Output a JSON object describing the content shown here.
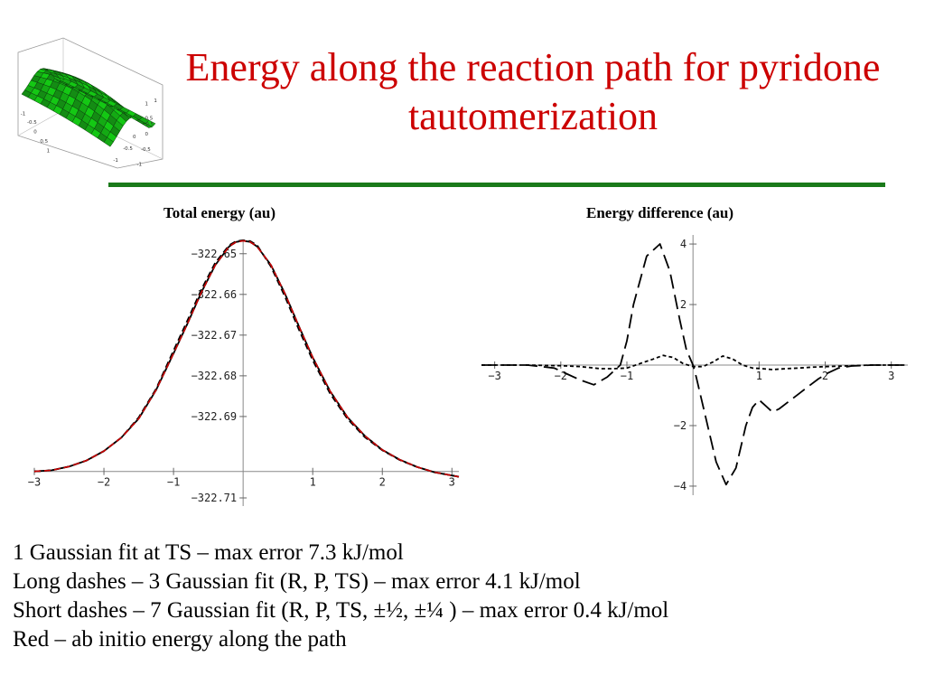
{
  "slide": {
    "title": "Energy along the reaction path for pyridone tautomerization",
    "accent_colors": {
      "title": "#cc0000",
      "rule": "#1a7a1a",
      "surface": "#22aa22"
    },
    "thumbnail": {
      "icon": "3d-surface-plot-icon",
      "tick_labels": [
        "1",
        "0.5",
        "0",
        "-0.5",
        "-1",
        "-1",
        "-0.5",
        "0",
        "0.5",
        "1",
        "1",
        "0.5",
        "0",
        "-0.5",
        "-1"
      ]
    },
    "notes": [
      "1 Gaussian fit at TS – max error 7.3 kJ/mol",
      "Long dashes – 3 Gaussian fit (R, P, TS) – max error 4.1 kJ/mol",
      "Short dashes – 7 Gaussian fit (R, P, TS, ±½, ±¼ ) – max error 0.4 kJ/mol",
      "Red – ab initio energy along the path"
    ]
  },
  "chart_data": [
    {
      "type": "line",
      "title": "Total energy (au)",
      "xlim": [
        -3.0,
        3.1
      ],
      "ylim": [
        -322.712,
        -322.6465
      ],
      "x_ticks": [
        -3,
        -2,
        -1,
        1,
        2,
        3
      ],
      "x_tick_labels": [
        "−3",
        "−2",
        "−1",
        "1",
        "2",
        "3"
      ],
      "y_ticks": [
        -322.65,
        -322.66,
        -322.67,
        -322.68,
        -322.69,
        -322.71
      ],
      "y_tick_labels": [
        "−322.65",
        "−322.66",
        "−322.67",
        "−322.68",
        "−322.69",
        "−322.71"
      ],
      "x_axis_at_y": -322.7035,
      "grid": false,
      "series": [
        {
          "style": "solid",
          "color": "#000000",
          "x": [
            -3.0,
            -2.75,
            -2.5,
            -2.25,
            -2.0,
            -1.75,
            -1.5,
            -1.25,
            -1.0,
            -0.8,
            -0.6,
            -0.4,
            -0.2,
            -0.1,
            0.0,
            0.1,
            0.2,
            0.4,
            0.6,
            0.8,
            1.0,
            1.25,
            1.5,
            1.75,
            2.0,
            2.25,
            2.5,
            2.75,
            3.1
          ],
          "y": [
            -322.7035,
            -322.7032,
            -322.7023,
            -322.7008,
            -322.6985,
            -322.6952,
            -322.6905,
            -322.6835,
            -322.6745,
            -322.6672,
            -322.6595,
            -322.6528,
            -322.6482,
            -322.6471,
            -322.6468,
            -322.6471,
            -322.6482,
            -322.6528,
            -322.6598,
            -322.6678,
            -322.6755,
            -322.6838,
            -322.6902,
            -322.6948,
            -322.6982,
            -322.7006,
            -322.7024,
            -322.7037,
            -322.7048
          ]
        },
        {
          "style": "dashed",
          "color": "#000000",
          "x": [
            -3.0,
            -2.75,
            -2.5,
            -2.25,
            -2.0,
            -1.75,
            -1.5,
            -1.25,
            -1.0,
            -0.8,
            -0.6,
            -0.4,
            -0.2,
            -0.1,
            0.0,
            0.1,
            0.2,
            0.4,
            0.6,
            0.8,
            1.0,
            1.25,
            1.5,
            1.75,
            2.0,
            2.25,
            2.5,
            2.75,
            3.1
          ],
          "y": [
            -322.7035,
            -322.7032,
            -322.7023,
            -322.7008,
            -322.6985,
            -322.6952,
            -322.6902,
            -322.6832,
            -322.6738,
            -322.6664,
            -322.6588,
            -322.6522,
            -322.6479,
            -322.6469,
            -322.6467,
            -322.6469,
            -322.6479,
            -322.6532,
            -322.6605,
            -322.6686,
            -322.6762,
            -322.6844,
            -322.6906,
            -322.6951,
            -322.6983,
            -322.7007,
            -322.7024,
            -322.7037,
            -322.7048
          ]
        },
        {
          "style": "dotted",
          "color": "#000000",
          "x": [
            -3.0,
            -2.75,
            -2.5,
            -2.25,
            -2.0,
            -1.75,
            -1.5,
            -1.25,
            -1.0,
            -0.8,
            -0.6,
            -0.4,
            -0.2,
            -0.1,
            0.0,
            0.1,
            0.2,
            0.4,
            0.6,
            0.8,
            1.0,
            1.25,
            1.5,
            1.75,
            2.0,
            2.25,
            2.5,
            2.75,
            3.1
          ],
          "y": [
            -322.7035,
            -322.7032,
            -322.7023,
            -322.7008,
            -322.6985,
            -322.6952,
            -322.6905,
            -322.6835,
            -322.6745,
            -322.6672,
            -322.6595,
            -322.6528,
            -322.6482,
            -322.6471,
            -322.6468,
            -322.6471,
            -322.6482,
            -322.6528,
            -322.6598,
            -322.6678,
            -322.6755,
            -322.6838,
            -322.6902,
            -322.6948,
            -322.6982,
            -322.7006,
            -322.7024,
            -322.7037,
            -322.7048
          ]
        },
        {
          "style": "dashed",
          "color": "#cc0000",
          "x": [
            -3.0,
            -2.75,
            -2.5,
            -2.25,
            -2.0,
            -1.75,
            -1.5,
            -1.25,
            -1.0,
            -0.8,
            -0.6,
            -0.4,
            -0.2,
            -0.1,
            0.0,
            0.1,
            0.2,
            0.4,
            0.6,
            0.8,
            1.0,
            1.25,
            1.5,
            1.75,
            2.0,
            2.25,
            2.5,
            2.75,
            3.1
          ],
          "y": [
            -322.7035,
            -322.7032,
            -322.7023,
            -322.7008,
            -322.6985,
            -322.6952,
            -322.6905,
            -322.6835,
            -322.6745,
            -322.6672,
            -322.6595,
            -322.6528,
            -322.6482,
            -322.6471,
            -322.6468,
            -322.6471,
            -322.6482,
            -322.6528,
            -322.6598,
            -322.6678,
            -322.6755,
            -322.6838,
            -322.6902,
            -322.6948,
            -322.6982,
            -322.7006,
            -322.7024,
            -322.7037,
            -322.7048
          ]
        }
      ]
    },
    {
      "type": "line",
      "title": "Energy difference (au)",
      "xlim": [
        -3.2,
        3.25
      ],
      "ylim": [
        -4.3,
        4.3
      ],
      "x_ticks": [
        -3,
        -2,
        -1,
        1,
        2,
        3
      ],
      "x_tick_labels": [
        "−3",
        "−2",
        "−1",
        "1",
        "2",
        "3"
      ],
      "y_ticks": [
        4,
        2,
        -2,
        -4
      ],
      "y_tick_labels": [
        "4",
        "2",
        "−2",
        "−4"
      ],
      "x_axis_at_y": 0,
      "grid": false,
      "series": [
        {
          "style": "long-dash",
          "color": "#000000",
          "x": [
            -3.2,
            -2.5,
            -2.1,
            -1.9,
            -1.7,
            -1.5,
            -1.3,
            -1.1,
            -1.0,
            -0.9,
            -0.7,
            -0.5,
            -0.35,
            -0.2,
            -0.1,
            0.0,
            0.05,
            0.2,
            0.35,
            0.5,
            0.65,
            0.8,
            0.9,
            1.0,
            1.1,
            1.2,
            1.3,
            1.45,
            1.6,
            1.75,
            1.9,
            2.05,
            2.2,
            2.4,
            2.7,
            3.0,
            3.2
          ],
          "y": [
            0.0,
            0.0,
            -0.1,
            -0.3,
            -0.5,
            -0.65,
            -0.4,
            0.0,
            0.8,
            2.0,
            3.6,
            4.0,
            3.1,
            1.5,
            0.5,
            0.0,
            -0.4,
            -1.8,
            -3.2,
            -3.95,
            -3.4,
            -2.0,
            -1.4,
            -1.15,
            -1.35,
            -1.55,
            -1.45,
            -1.2,
            -0.95,
            -0.7,
            -0.45,
            -0.25,
            -0.1,
            -0.03,
            0.0,
            0.0,
            0.0
          ]
        },
        {
          "style": "short-dash",
          "color": "#000000",
          "x": [
            -3.2,
            -2.5,
            -2.0,
            -1.7,
            -1.4,
            -1.2,
            -1.0,
            -0.8,
            -0.6,
            -0.45,
            -0.3,
            -0.15,
            0.0,
            0.15,
            0.3,
            0.45,
            0.6,
            0.75,
            0.9,
            1.05,
            1.2,
            1.4,
            1.6,
            1.8,
            2.0,
            2.2,
            2.4,
            2.7,
            3.0,
            3.2
          ],
          "y": [
            0.0,
            0.0,
            -0.02,
            -0.05,
            -0.12,
            -0.12,
            -0.1,
            0.05,
            0.2,
            0.32,
            0.25,
            0.05,
            -0.05,
            -0.05,
            0.1,
            0.3,
            0.2,
            0.0,
            -0.1,
            -0.12,
            -0.15,
            -0.12,
            -0.1,
            -0.07,
            -0.05,
            -0.04,
            -0.02,
            0.0,
            0.0,
            0.0
          ]
        }
      ]
    }
  ]
}
